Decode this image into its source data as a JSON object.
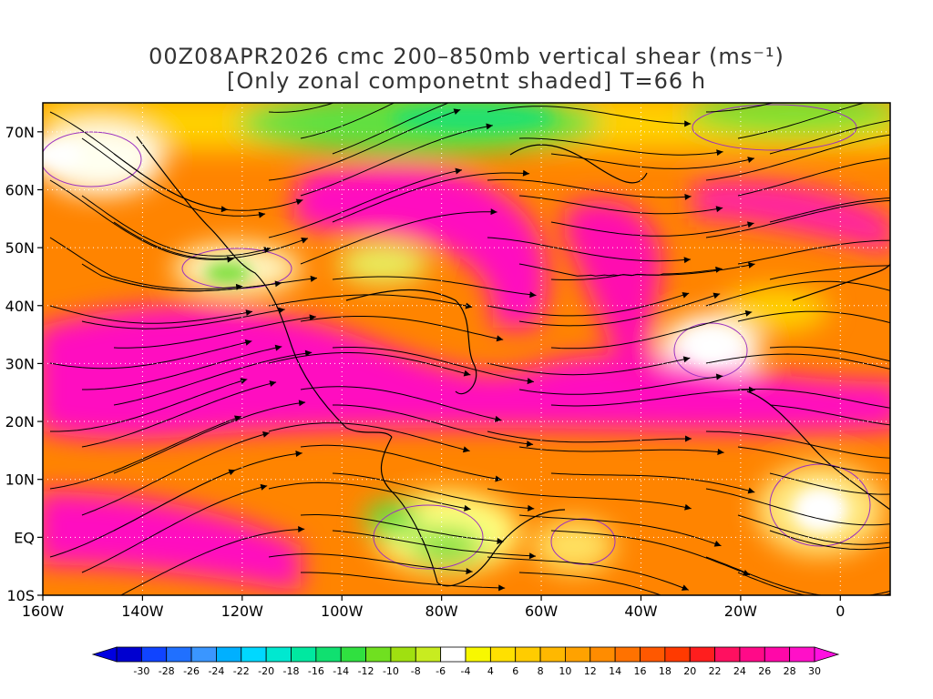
{
  "title": {
    "line1": "00Z08APR2026 cmc 200–850mb vertical shear (ms⁻¹)",
    "line2": "[Only zonal componetnt shaded] T=66 h"
  },
  "map": {
    "lat_labels": [
      "70N",
      "60N",
      "50N",
      "40N",
      "30N",
      "20N",
      "10N",
      "EQ",
      "10S"
    ],
    "lat_values": [
      70,
      60,
      50,
      40,
      30,
      20,
      10,
      0,
      -10
    ],
    "lon_labels": [
      "160W",
      "140W",
      "120W",
      "100W",
      "80W",
      "60W",
      "40W",
      "20W",
      "0"
    ],
    "lon_values": [
      -160,
      -140,
      -120,
      -100,
      -80,
      -60,
      -40,
      -20,
      0
    ],
    "lon_range": [
      -160,
      10
    ],
    "lat_range": [
      -10,
      75
    ],
    "grid": "dotted"
  },
  "colorbar": {
    "colors": [
      "#0000d0",
      "#1044ff",
      "#2070ff",
      "#3a96ff",
      "#00b0ff",
      "#00d8ff",
      "#00e8d0",
      "#00e8a0",
      "#10e070",
      "#30e040",
      "#70e020",
      "#a0e010",
      "#c8ec20",
      "#ffffff",
      "#f8f800",
      "#ffe000",
      "#ffcc00",
      "#ffb800",
      "#ffa200",
      "#ff8c00",
      "#ff7200",
      "#ff5800",
      "#ff3a00",
      "#ff1e1e",
      "#ff1060",
      "#ff0a88",
      "#ff08a8",
      "#ff10c8"
    ],
    "labels": [
      "-30",
      "-28",
      "-26",
      "-24",
      "-22",
      "-20",
      "-18",
      "-16",
      "-14",
      "-12",
      "-10",
      "-8",
      "-6",
      "-4",
      "4",
      "6",
      "8",
      "10",
      "12",
      "14",
      "16",
      "18",
      "20",
      "22",
      "24",
      "26",
      "28",
      "30"
    ]
  }
}
